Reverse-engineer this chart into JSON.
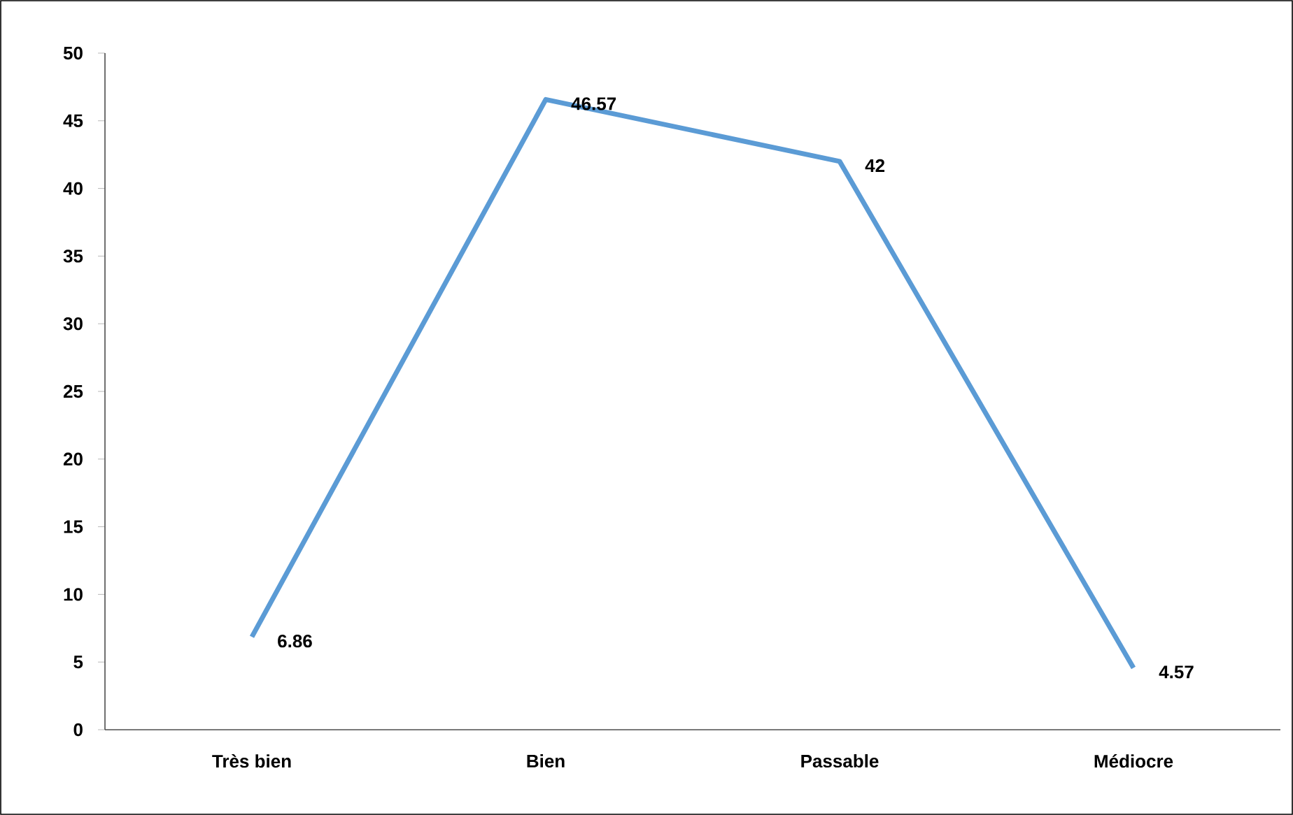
{
  "chart_data": {
    "type": "line",
    "categories": [
      "Très bien",
      "Bien",
      "Passable",
      "Médiocre"
    ],
    "series": [
      {
        "color": "#5b9bd5",
        "values": [
          6.86,
          46.57,
          42,
          4.57
        ]
      }
    ],
    "ylim": [
      0,
      50
    ],
    "yticks": [
      0,
      5,
      10,
      15,
      20,
      25,
      30,
      35,
      40,
      45,
      50
    ],
    "data_labels": true,
    "marker": "none",
    "line_style": "solid"
  }
}
